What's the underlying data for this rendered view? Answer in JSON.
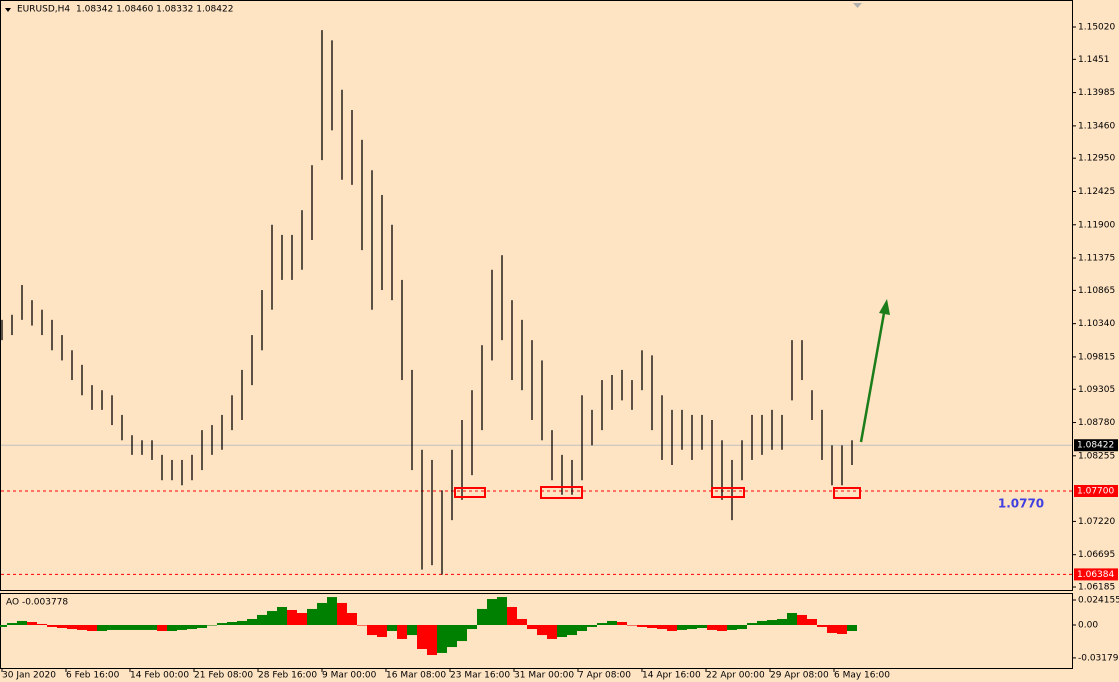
{
  "chart_data": [
    {
      "type": "ohlc",
      "title": "EURUSD,H4",
      "quote": "1.08342 1.08460 1.08332 1.08422",
      "color": "#000000",
      "x": [
        1,
        6,
        11,
        16,
        21,
        26,
        31,
        36,
        41,
        46,
        51,
        56,
        61,
        66,
        71,
        76,
        81,
        86,
        91,
        96,
        101,
        106,
        111,
        116,
        121,
        126,
        131,
        136,
        141,
        146,
        151,
        156,
        161,
        166,
        171,
        176,
        181,
        186,
        191,
        196,
        201,
        206,
        211,
        216,
        221,
        226,
        231,
        236,
        241,
        246,
        251,
        256,
        261,
        266,
        271,
        276,
        281,
        286,
        291,
        296,
        301,
        306,
        311,
        316,
        321,
        326,
        331,
        336,
        341,
        346,
        351,
        356,
        361,
        366,
        371,
        376,
        381,
        386,
        391,
        396,
        401,
        406,
        411,
        416,
        421,
        426
      ],
      "high": [
        1.104,
        1.1048,
        1.1095,
        1.1071,
        1.1056,
        1.104,
        1.1016,
        1.0992,
        1.0969,
        1.0937,
        1.0929,
        1.0921,
        1.089,
        1.0858,
        1.085,
        1.085,
        1.0827,
        1.0819,
        1.0819,
        1.0827,
        1.0866,
        1.0874,
        1.089,
        1.0921,
        1.0961,
        1.1016,
        1.1087,
        1.119,
        1.1174,
        1.1174,
        1.1213,
        1.1284,
        1.1497,
        1.1481,
        1.1403,
        1.1371,
        1.1324,
        1.1276,
        1.1237,
        1.119,
        1.1103,
        1.0961,
        1.0835,
        1.0819,
        1.0771,
        1.0835,
        1.0882,
        1.0929,
        1.1,
        1.1119,
        1.1142,
        1.1071,
        1.104,
        1.1008,
        1.0976,
        1.0866,
        1.0827,
        1.0819,
        1.0921,
        1.0898,
        1.0945,
        1.0953,
        1.0961,
        1.0945,
        1.0992,
        1.0984,
        1.0921,
        1.0898,
        1.0898,
        1.089,
        1.089,
        1.0882,
        1.085,
        1.0819,
        1.085,
        1.089,
        1.089,
        1.0898,
        1.089,
        1.1008,
        1.1008,
        1.0929,
        1.0898,
        1.0842,
        1.0842,
        1.085
      ],
      "low": [
        1.1008,
        1.1016,
        1.104,
        1.1031,
        1.1016,
        1.0992,
        1.0976,
        1.0945,
        1.0921,
        1.0898,
        1.0898,
        1.0874,
        1.085,
        1.0827,
        1.0827,
        1.0819,
        1.0787,
        1.0787,
        1.0779,
        1.0787,
        1.0803,
        1.0827,
        1.0835,
        1.0866,
        1.0882,
        1.0937,
        1.0992,
        1.1056,
        1.1103,
        1.1103,
        1.1119,
        1.1166,
        1.1292,
        1.1339,
        1.1261,
        1.1253,
        1.115,
        1.1056,
        1.1087,
        1.1071,
        1.0945,
        1.0803,
        1.0646,
        1.0653,
        1.0638,
        1.0724,
        1.0756,
        1.0795,
        1.0866,
        1.0976,
        1.1008,
        1.0945,
        1.0929,
        1.0882,
        1.085,
        1.0787,
        1.0764,
        1.0764,
        1.0787,
        1.0842,
        1.0866,
        1.0898,
        1.0913,
        1.0898,
        1.0929,
        1.0866,
        1.0819,
        1.0811,
        1.0835,
        1.0819,
        1.0835,
        1.0771,
        1.0756,
        1.0724,
        1.0787,
        1.0819,
        1.0827,
        1.0835,
        1.0835,
        1.0913,
        1.0945,
        1.0882,
        1.0819,
        1.0779,
        1.0779,
        1.0811
      ],
      "xlim": [
        0,
        536
      ],
      "xticks": [
        {
          "value": 1,
          "label": "30 Jan 2020"
        },
        {
          "value": 33,
          "label": "6 Feb 16:00"
        },
        {
          "value": 65,
          "label": "14 Feb 00:00"
        },
        {
          "value": 97,
          "label": "21 Feb 08:00"
        },
        {
          "value": 129,
          "label": "28 Feb 16:00"
        },
        {
          "value": 161,
          "label": "9 Mar 00:00"
        },
        {
          "value": 193,
          "label": "16 Mar 08:00"
        },
        {
          "value": 225,
          "label": "23 Mar 16:00"
        },
        {
          "value": 257,
          "label": "31 Mar 00:00"
        },
        {
          "value": 289,
          "label": "7 Apr 08:00"
        },
        {
          "value": 321,
          "label": "14 Apr 16:00"
        },
        {
          "value": 353,
          "label": "22 Apr 00:00"
        },
        {
          "value": 385,
          "label": "29 Apr 08:00"
        },
        {
          "value": 417,
          "label": "6 May 16:00"
        }
      ],
      "ylim": [
        1.06138,
        1.15446
      ],
      "yticks": [
        {
          "value": 1.1502,
          "label": "1.15020"
        },
        1.1451,
        1.13985,
        {
          "value": 1.1346,
          "label": "1.13460"
        },
        {
          "value": 1.1295,
          "label": "1.12950"
        },
        1.12425,
        {
          "value": 1.119,
          "label": "1.11900"
        },
        1.11375,
        1.10865,
        {
          "value": 1.1034,
          "label": "1.10340"
        },
        1.09815,
        1.09305,
        {
          "value": 1.0878,
          "label": "1.08780"
        },
        1.08255,
        {
          "value": 1.0722,
          "label": "1.07220"
        },
        1.06695,
        1.06185
      ],
      "current_price": {
        "value": 1.08422,
        "label": "1.08422"
      },
      "levels": [
        {
          "value": 1.077,
          "label": "1.07700"
        },
        {
          "value": 1.06384,
          "label": "1.06384"
        }
      ],
      "annotation": "1.0770"
    },
    {
      "type": "bar",
      "title": "AO -0.003778",
      "up_color": "#008000",
      "down_color": "#ff0000",
      "values": [
        -0.0019,
        0.0019,
        0.0039,
        0.0029,
        0.001,
        -0.0019,
        -0.0029,
        -0.0039,
        -0.0048,
        -0.0058,
        -0.0058,
        -0.0048,
        -0.0048,
        -0.0048,
        -0.0048,
        -0.0048,
        -0.0058,
        -0.0058,
        -0.0048,
        -0.0039,
        -0.0029,
        0,
        0.0019,
        0.0029,
        0.0039,
        0.0058,
        0.0097,
        0.0135,
        0.0174,
        0.0145,
        0.0116,
        0.0155,
        0.0213,
        0.027,
        0.0213,
        0.0116,
        0,
        -0.0097,
        -0.0116,
        -0.0058,
        -0.0135,
        -0.0097,
        -0.0232,
        -0.029,
        -0.027,
        -0.0213,
        -0.0155,
        -0.0039,
        0.0155,
        0.0251,
        0.027,
        0.0174,
        0.0058,
        -0.0039,
        -0.0097,
        -0.0135,
        -0.0116,
        -0.0097,
        -0.0058,
        -0.0019,
        0.0019,
        0.0039,
        0.0029,
        0,
        -0.0019,
        -0.0029,
        -0.0039,
        -0.0058,
        -0.0048,
        -0.0039,
        -0.0029,
        -0.0048,
        -0.0058,
        -0.0048,
        -0.0039,
        0.0019,
        0.0039,
        0.0048,
        0.0058,
        0.0116,
        0.0097,
        0.0058,
        -0.0019,
        -0.0077,
        -0.0087,
        -0.0058
      ],
      "ylim": [
        -0.04155,
        0.03092
      ],
      "yticks": [
        0.024155,
        {
          "value": 0,
          "label": "0.00"
        },
        -0.031793
      ]
    }
  ]
}
